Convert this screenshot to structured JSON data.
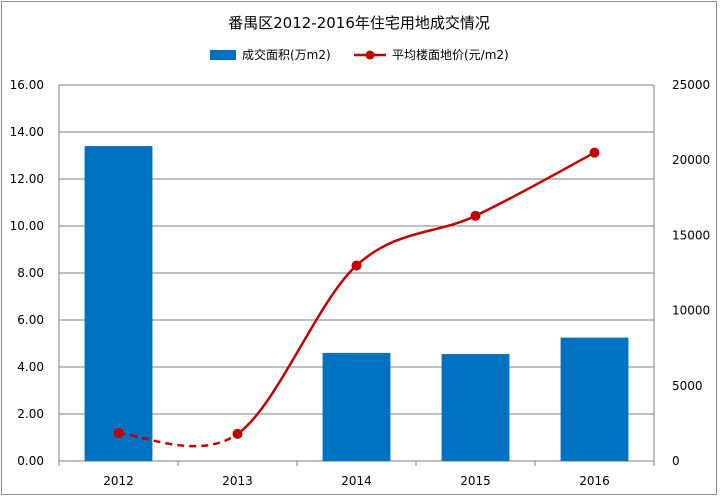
{
  "chart_data": {
    "type": "bar+line",
    "title": "番禺区2012-2016年住宅用地成交情况",
    "categories": [
      "2012",
      "2013",
      "2014",
      "2015",
      "2016"
    ],
    "series": [
      {
        "name": "成交面积(万m2)",
        "type": "bar",
        "axis": "left",
        "color": "#0070C0",
        "values": [
          13.4,
          0,
          4.6,
          4.55,
          5.25
        ]
      },
      {
        "name": "平均楼面地价(元/m2)",
        "type": "line",
        "axis": "right",
        "color": "#C00000",
        "values": [
          1850,
          1800,
          13000,
          16300,
          20500
        ],
        "dashed_segments": [
          0
        ]
      }
    ],
    "y_left": {
      "min": 0,
      "max": 16,
      "step": 2,
      "tick_labels": [
        "0.00",
        "2.00",
        "4.00",
        "6.00",
        "8.00",
        "10.00",
        "12.00",
        "14.00",
        "16.00"
      ]
    },
    "y_right": {
      "min": 0,
      "max": 25000,
      "step": 5000,
      "tick_labels": [
        "0",
        "5000",
        "10000",
        "15000",
        "20000",
        "25000"
      ]
    },
    "grid": true,
    "legend": "top-center"
  }
}
